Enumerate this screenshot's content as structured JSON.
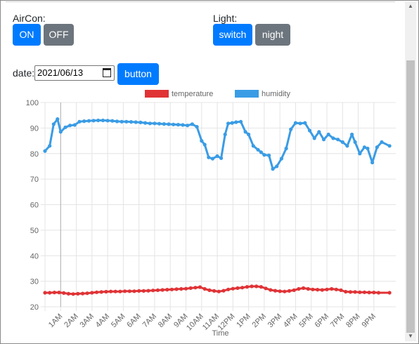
{
  "aircon": {
    "label": "AirCon:",
    "on_label": "ON",
    "off_label": "OFF"
  },
  "light": {
    "label": "Light:",
    "switch_label": "switch",
    "night_label": "night"
  },
  "date_filter": {
    "label": "date:",
    "value": "2021/06/13",
    "button_label": "button"
  },
  "colors": {
    "primary": "#007bff",
    "secondary": "#6c757d",
    "temperature": "#e03336",
    "humidity": "#3a9ce5"
  },
  "chart_data": {
    "type": "line",
    "xlabel": "Time",
    "ylim": [
      20,
      100
    ],
    "yticks": [
      20,
      30,
      40,
      50,
      60,
      70,
      80,
      90,
      100
    ],
    "xlim": [
      0,
      22.4
    ],
    "xticks": [
      {
        "hour": 1,
        "label": "1AM"
      },
      {
        "hour": 2,
        "label": "2AM"
      },
      {
        "hour": 3,
        "label": "3AM"
      },
      {
        "hour": 4,
        "label": "4AM"
      },
      {
        "hour": 5,
        "label": "5AM"
      },
      {
        "hour": 6,
        "label": "6AM"
      },
      {
        "hour": 7,
        "label": "7AM"
      },
      {
        "hour": 8,
        "label": "8AM"
      },
      {
        "hour": 9,
        "label": "9AM"
      },
      {
        "hour": 10,
        "label": "10AM"
      },
      {
        "hour": 11,
        "label": "11AM"
      },
      {
        "hour": 12,
        "label": "12PM"
      },
      {
        "hour": 13,
        "label": "1PM"
      },
      {
        "hour": 14,
        "label": "2PM"
      },
      {
        "hour": 15,
        "label": "3PM"
      },
      {
        "hour": 16,
        "label": "4PM"
      },
      {
        "hour": 17,
        "label": "5PM"
      },
      {
        "hour": 18,
        "label": "6PM"
      },
      {
        "hour": 19,
        "label": "7PM"
      },
      {
        "hour": 20,
        "label": "8PM"
      },
      {
        "hour": 21,
        "label": "9PM"
      }
    ],
    "grid": true,
    "legend_position": "top",
    "series": [
      {
        "name": "temperature",
        "color": "#e03336",
        "x": [
          0.0,
          0.3,
          0.6,
          0.9,
          1.2,
          1.5,
          1.8,
          2.1,
          2.4,
          2.7,
          3.0,
          3.3,
          3.6,
          3.9,
          4.2,
          4.5,
          4.8,
          5.1,
          5.4,
          5.7,
          6.0,
          6.3,
          6.6,
          6.9,
          7.2,
          7.5,
          7.8,
          8.1,
          8.4,
          8.7,
          9.0,
          9.3,
          9.6,
          9.9,
          10.2,
          10.5,
          10.8,
          11.1,
          11.4,
          11.7,
          12.0,
          12.3,
          12.6,
          12.9,
          13.2,
          13.5,
          13.8,
          14.1,
          14.4,
          14.7,
          15.0,
          15.3,
          15.6,
          15.9,
          16.2,
          16.5,
          16.8,
          17.1,
          17.4,
          17.7,
          18.0,
          18.3,
          18.6,
          18.9,
          19.2,
          19.5,
          19.8,
          20.1,
          20.4,
          20.7,
          21.0,
          21.3,
          22.0
        ],
        "values": [
          25.5,
          25.5,
          25.6,
          25.6,
          25.4,
          25.1,
          25.0,
          25.1,
          25.2,
          25.3,
          25.5,
          25.7,
          25.8,
          25.9,
          26.0,
          26.0,
          26.0,
          26.1,
          26.1,
          26.1,
          26.2,
          26.2,
          26.3,
          26.4,
          26.5,
          26.6,
          26.7,
          26.8,
          26.9,
          27.0,
          27.1,
          27.3,
          27.5,
          27.7,
          27.0,
          26.5,
          26.2,
          26.0,
          26.3,
          26.8,
          27.1,
          27.3,
          27.5,
          27.8,
          28.0,
          28.0,
          27.8,
          27.2,
          26.6,
          26.3,
          26.1,
          26.0,
          26.2,
          26.5,
          27.0,
          27.3,
          27.0,
          26.8,
          26.7,
          26.6,
          26.8,
          27.0,
          26.8,
          26.5,
          25.9,
          25.8,
          25.8,
          25.7,
          25.7,
          25.6,
          25.6,
          25.5,
          25.5
        ]
      },
      {
        "name": "humidity",
        "color": "#3a9ce5",
        "x": [
          0.0,
          0.3,
          0.55,
          0.8,
          1.0,
          1.3,
          1.6,
          1.9,
          2.2,
          2.5,
          2.8,
          3.1,
          3.4,
          3.7,
          4.0,
          4.3,
          4.6,
          4.9,
          5.2,
          5.5,
          5.8,
          6.1,
          6.4,
          6.7,
          7.0,
          7.3,
          7.6,
          7.9,
          8.2,
          8.5,
          8.8,
          9.1,
          9.4,
          9.7,
          10.0,
          10.2,
          10.45,
          10.7,
          11.0,
          11.25,
          11.5,
          11.7,
          11.95,
          12.2,
          12.5,
          12.8,
          13.0,
          13.3,
          13.6,
          13.8,
          14.0,
          14.3,
          14.55,
          14.8,
          15.1,
          15.4,
          15.7,
          16.0,
          16.3,
          16.6,
          16.9,
          17.2,
          17.5,
          17.8,
          18.1,
          18.4,
          18.7,
          19.0,
          19.3,
          19.6,
          19.8,
          20.1,
          20.4,
          20.6,
          20.9,
          21.2,
          21.5,
          22.0
        ],
        "values": [
          81.0,
          83.0,
          91.5,
          93.5,
          88.5,
          90.3,
          91.0,
          91.2,
          92.5,
          92.7,
          92.8,
          92.9,
          93.0,
          93.0,
          92.9,
          92.8,
          92.6,
          92.5,
          92.5,
          92.4,
          92.3,
          92.2,
          92.0,
          91.8,
          91.8,
          91.7,
          91.6,
          91.5,
          91.4,
          91.3,
          91.2,
          91.0,
          91.5,
          90.5,
          85.0,
          83.5,
          78.5,
          78.0,
          79.0,
          78.2,
          87.5,
          91.8,
          92.0,
          92.3,
          92.5,
          88.5,
          87.5,
          83.0,
          81.5,
          80.5,
          79.5,
          79.3,
          74.0,
          75.0,
          78.0,
          82.0,
          89.5,
          92.0,
          91.8,
          92.0,
          89.0,
          86.0,
          88.5,
          85.5,
          87.5,
          86.0,
          85.5,
          84.5,
          83.0,
          87.5,
          84.5,
          80.0,
          82.5,
          82.0,
          76.5,
          82.5,
          84.5,
          83.0
        ]
      }
    ]
  }
}
